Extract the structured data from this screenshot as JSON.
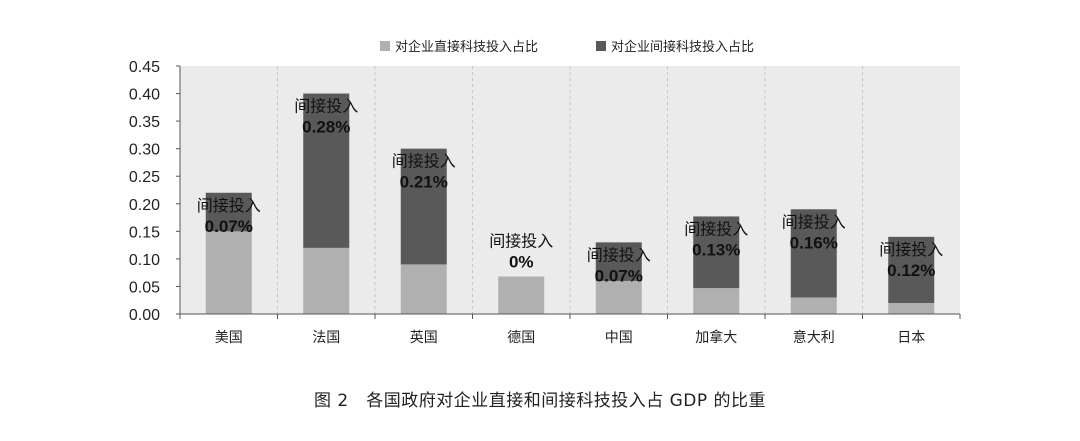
{
  "caption": "图 2　各国政府对企业直接和间接科技投入占 GDP 的比重",
  "chart_data": {
    "type": "bar",
    "stacked": true,
    "categories": [
      "美国",
      "法国",
      "英国",
      "德国",
      "中国",
      "加拿大",
      "意大利",
      "日本"
    ],
    "series": [
      {
        "name": "对企业直接科技投入占比",
        "color": "#b0b0b0",
        "values": [
          0.15,
          0.12,
          0.09,
          0.068,
          0.06,
          0.047,
          0.03,
          0.02
        ]
      },
      {
        "name": "对企业间接科技投入占比",
        "color": "#595959",
        "values": [
          0.07,
          0.28,
          0.21,
          0.0,
          0.07,
          0.13,
          0.16,
          0.12
        ]
      }
    ],
    "annotations": [
      {
        "label": "间接投入",
        "value": "0.07%"
      },
      {
        "label": "间接投入",
        "value": "0.28%"
      },
      {
        "label": "间接投入",
        "value": "0.21%"
      },
      {
        "label": "间接投入",
        "value": "0%"
      },
      {
        "label": "间接投入",
        "value": "0.07%"
      },
      {
        "label": "间接投入",
        "value": "0.13%"
      },
      {
        "label": "间接投入",
        "value": "0.16%"
      },
      {
        "label": "间接投入",
        "value": "0.12%"
      }
    ],
    "yticks": [
      "0.00",
      "0.05",
      "0.10",
      "0.15",
      "0.20",
      "0.25",
      "0.30",
      "0.35",
      "0.40",
      "0.45"
    ],
    "ylim": [
      0,
      0.45
    ],
    "legend_position": "top",
    "plot_background": "#ebebeb",
    "grid": "vertical dashed separators"
  }
}
